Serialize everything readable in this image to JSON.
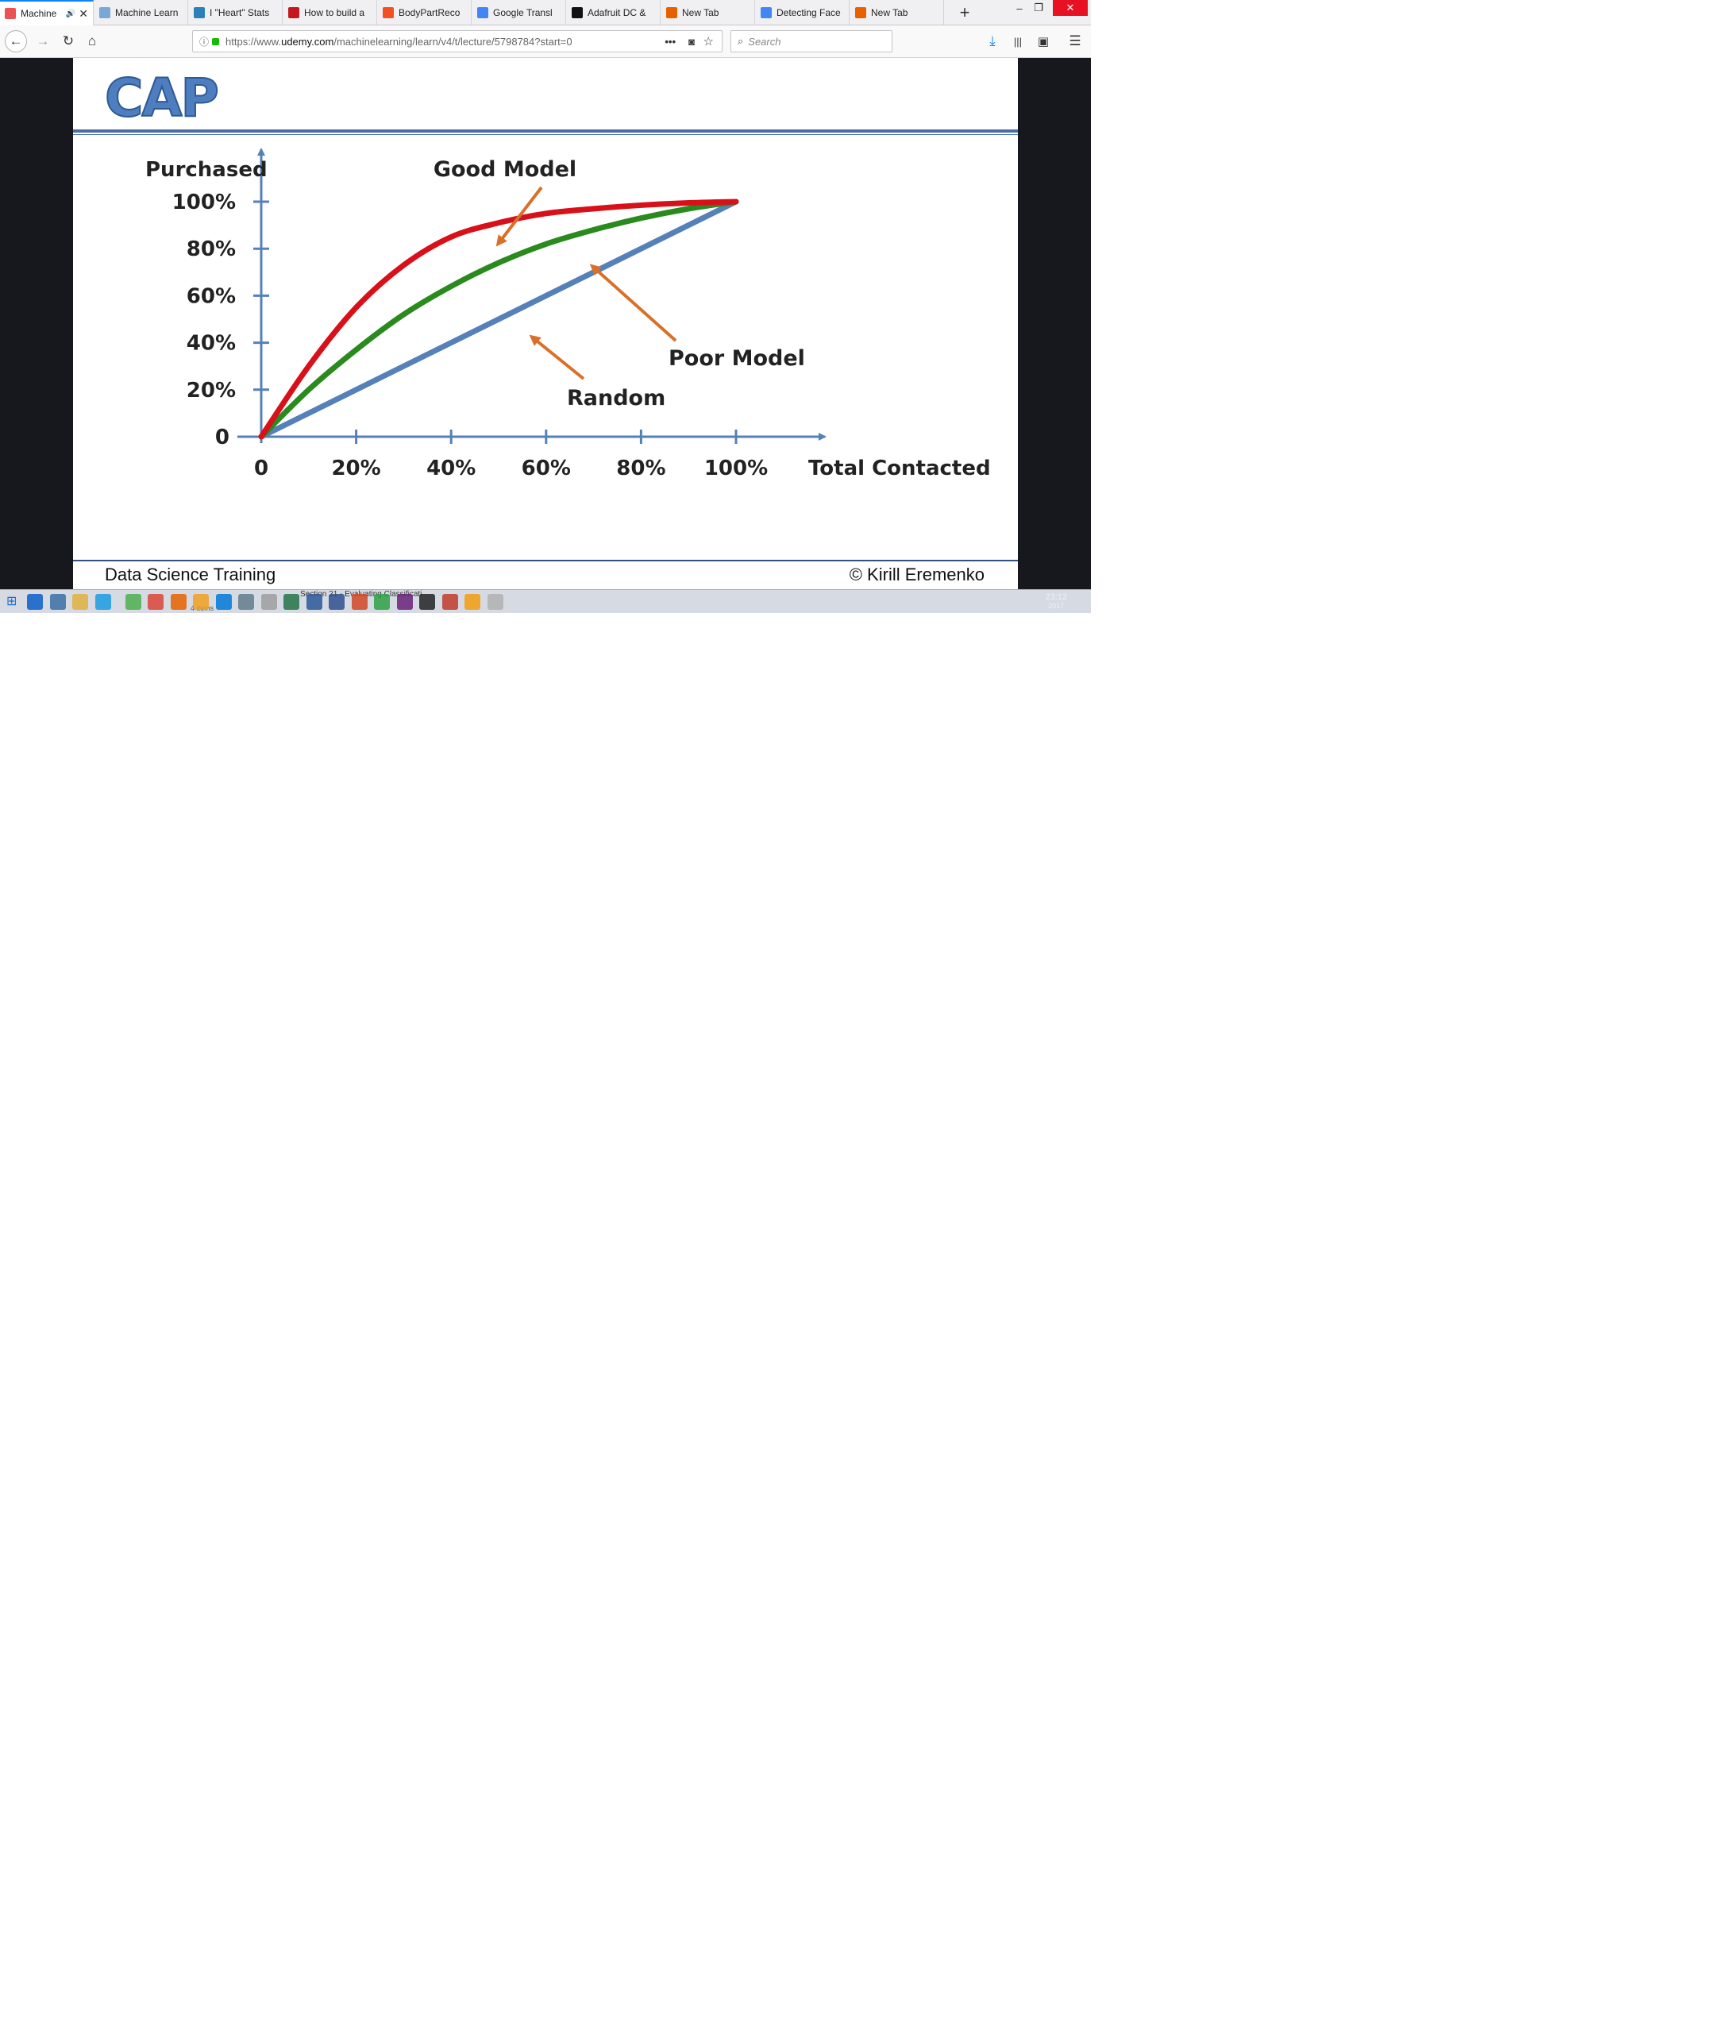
{
  "browser": {
    "tabs": [
      {
        "label": "Machine",
        "active": true,
        "favicon_color": "#ec5252"
      },
      {
        "label": "Machine Learn",
        "favicon_color": "#7aa6d8"
      },
      {
        "label": "I \"Heart\" Stats",
        "favicon_color": "#2c7fb8"
      },
      {
        "label": "How to build a",
        "favicon_color": "#c4181f"
      },
      {
        "label": "BodyPartReco",
        "favicon_color": "#f25022"
      },
      {
        "label": "Google Transl",
        "favicon_color": "#4285f4"
      },
      {
        "label": "Adafruit DC &",
        "favicon_color": "#111111"
      },
      {
        "label": "New Tab",
        "favicon_color": "#e66000"
      },
      {
        "label": "Detecting Face",
        "favicon_color": "#4285f4"
      },
      {
        "label": "New Tab",
        "favicon_color": "#e66000"
      }
    ],
    "new_tab": "+",
    "window_controls": {
      "minimize": "–",
      "restore": "❐",
      "close": "✕"
    },
    "url": {
      "prefix": "https://www.",
      "host": "udemy.com",
      "path": "/machinelearning/learn/v4/t/lecture/5798784?start=0"
    },
    "search_placeholder": "Search",
    "page_actions": "•••"
  },
  "slide": {
    "title": "CAP",
    "footer_left": "Data Science Training",
    "footer_right": "© Kirill Eremenko"
  },
  "chart_data": {
    "type": "line",
    "ylabel": "Purchased",
    "xlabel": "Total Contacted",
    "x_ticks": [
      "0",
      "20%",
      "40%",
      "60%",
      "80%",
      "100%"
    ],
    "y_ticks": [
      "0",
      "20%",
      "40%",
      "60%",
      "80%",
      "100%"
    ],
    "xlim": [
      0,
      100
    ],
    "ylim": [
      0,
      100
    ],
    "series": [
      {
        "name": "Random",
        "color": "#5580b8",
        "points": [
          [
            0,
            0
          ],
          [
            100,
            100
          ]
        ]
      },
      {
        "name": "Poor Model",
        "color": "#2a8a1e",
        "points": [
          [
            0,
            0
          ],
          [
            10,
            20
          ],
          [
            20,
            37
          ],
          [
            30,
            52
          ],
          [
            40,
            64
          ],
          [
            50,
            74
          ],
          [
            60,
            82
          ],
          [
            70,
            88
          ],
          [
            80,
            93
          ],
          [
            90,
            97
          ],
          [
            100,
            100
          ]
        ]
      },
      {
        "name": "Good Model",
        "color": "#d8101a",
        "points": [
          [
            0,
            0
          ],
          [
            10,
            30
          ],
          [
            20,
            55
          ],
          [
            30,
            73
          ],
          [
            40,
            85
          ],
          [
            50,
            91
          ],
          [
            60,
            95
          ],
          [
            70,
            97
          ],
          [
            80,
            98.5
          ],
          [
            90,
            99.5
          ],
          [
            100,
            100
          ]
        ]
      }
    ],
    "annotation_color": "#d9702a",
    "grid": false
  },
  "taskbar": {
    "caption": "Section 21 - Evaluating Classificati",
    "sub_caption": "4 items",
    "clock_time": "23:12",
    "clock_date": "2017"
  }
}
